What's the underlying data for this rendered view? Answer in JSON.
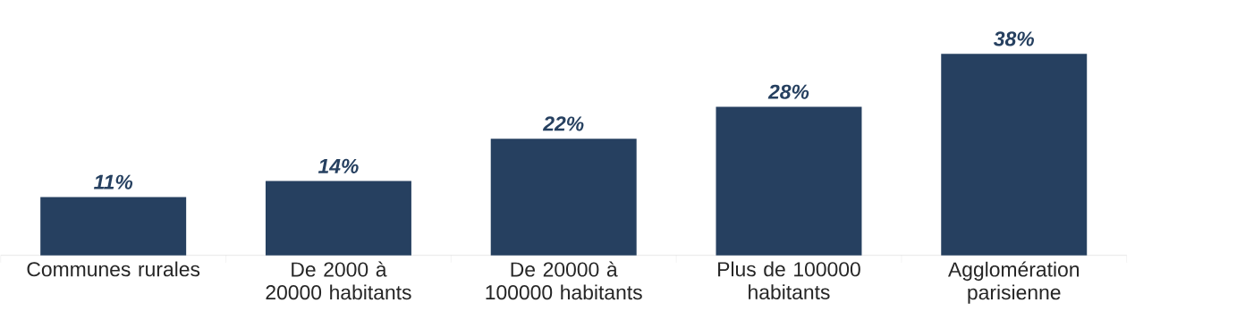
{
  "chart_data": {
    "type": "bar",
    "categories": [
      "Communes rurales",
      "De 2000 à 20000 habitants",
      "De 20000 à 100000 habitants",
      "Plus de 100000 habitants",
      "Agglomération parisienne"
    ],
    "values": [
      11,
      14,
      22,
      28,
      38
    ],
    "value_labels": [
      "11%",
      "14%",
      "22%",
      "28%",
      "38%"
    ],
    "color": "#264060"
  }
}
